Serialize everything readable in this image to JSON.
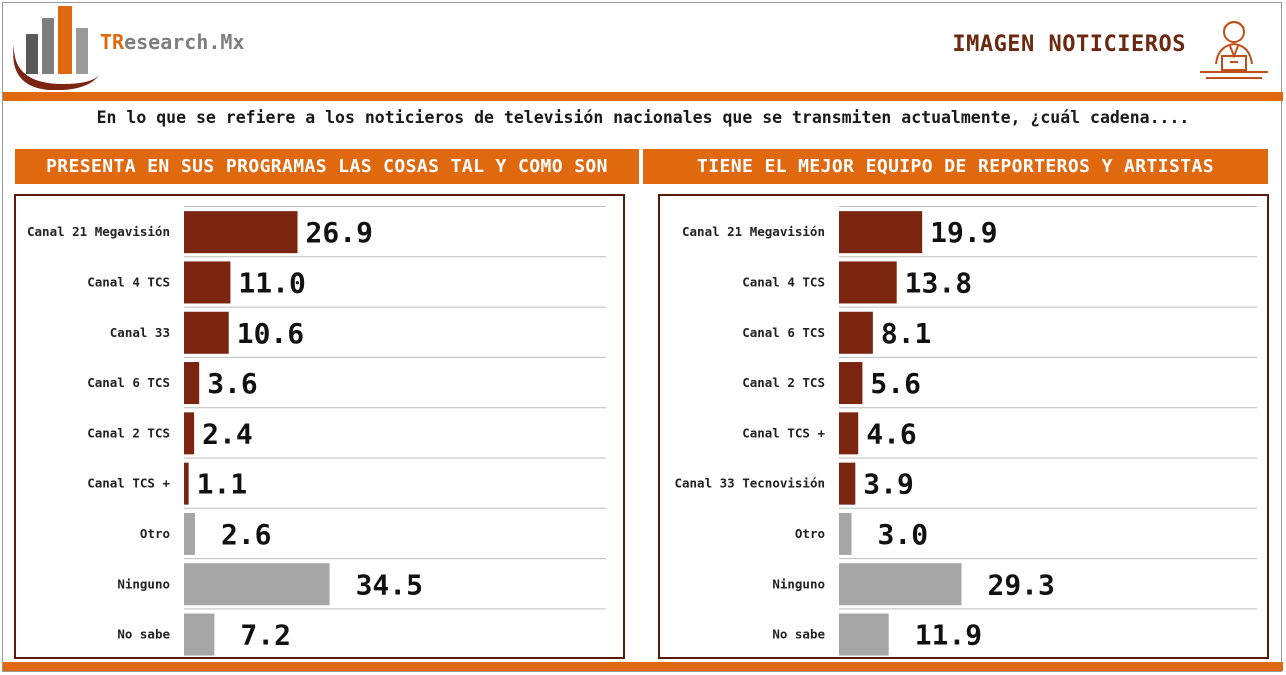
{
  "header": {
    "brand_prefix": "TR",
    "brand_suffix": "esearch.Mx",
    "title": "IMAGEN NOTICIEROS",
    "logo_icon": "bar-chart-logo-icon",
    "anchor_icon": "news-anchor-icon"
  },
  "question": "En lo que se refiere a los noticieros de televisión nacionales que se transmiten actualmente, ¿cuál cadena....",
  "colors": {
    "accent": "#e0690f",
    "channel_bar": "#7b2410",
    "other_bar": "#a6a6a6",
    "panel_border": "#5a1b0b"
  },
  "chart_data": [
    {
      "type": "bar",
      "orientation": "horizontal",
      "title": "PRESENTA EN SUS PROGRAMAS LAS COSAS TAL Y COMO SON",
      "categories": [
        "Canal 21 Megavisión",
        "Canal 4 TCS",
        "Canal 33",
        "Canal 6 TCS",
        "Canal 2 TCS",
        "Canal TCS +",
        "Otro",
        "Ninguno",
        "No sabe"
      ],
      "values": [
        26.9,
        11.0,
        10.6,
        3.6,
        2.4,
        1.1,
        2.6,
        34.5,
        7.2
      ],
      "value_labels": [
        "26.9",
        "11.0",
        "10.6",
        "3.6",
        "2.4",
        "1.1",
        "2.6",
        "34.5",
        "7.2"
      ],
      "bar_colors": [
        "#7b2410",
        "#7b2410",
        "#7b2410",
        "#7b2410",
        "#7b2410",
        "#7b2410",
        "#a6a6a6",
        "#a6a6a6",
        "#a6a6a6"
      ],
      "xlim": [
        0,
        100
      ]
    },
    {
      "type": "bar",
      "orientation": "horizontal",
      "title": "TIENE EL MEJOR EQUIPO DE REPORTEROS Y ARTISTAS",
      "categories": [
        "Canal 21 Megavisión",
        "Canal 4 TCS",
        "Canal 6 TCS",
        "Canal 2 TCS",
        "Canal TCS +",
        "Canal 33 Tecnovisión",
        "Otro",
        "Ninguno",
        "No sabe"
      ],
      "values": [
        19.9,
        13.8,
        8.1,
        5.6,
        4.6,
        3.9,
        3.0,
        29.3,
        11.9
      ],
      "value_labels": [
        "19.9",
        "13.8",
        "8.1",
        "5.6",
        "4.6",
        "3.9",
        "3.0",
        "29.3",
        "11.9"
      ],
      "bar_colors": [
        "#7b2410",
        "#7b2410",
        "#7b2410",
        "#7b2410",
        "#7b2410",
        "#7b2410",
        "#a6a6a6",
        "#a6a6a6",
        "#a6a6a6"
      ],
      "xlim": [
        0,
        100
      ]
    }
  ]
}
